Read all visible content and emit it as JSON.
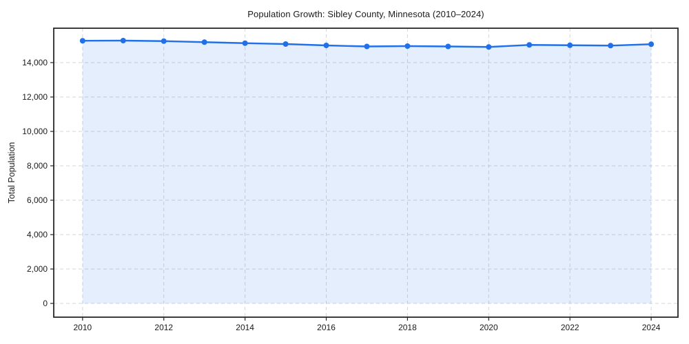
{
  "figure": {
    "background_color": "#ffffff"
  },
  "chart_data": {
    "type": "area",
    "title": "Population Growth: Sibley County, Minnesota (2010–2024)",
    "xlabel": "",
    "ylabel": "Total Population",
    "x": [
      2010,
      2011,
      2012,
      2013,
      2014,
      2015,
      2016,
      2017,
      2018,
      2019,
      2020,
      2021,
      2022,
      2023,
      2024
    ],
    "series": [
      {
        "name": "Total Population",
        "values": [
          15270,
          15280,
          15250,
          15190,
          15130,
          15080,
          15000,
          14940,
          14960,
          14940,
          14910,
          15030,
          15010,
          14990,
          15070
        ]
      }
    ],
    "x_ticks": {
      "values": [
        2010,
        2012,
        2014,
        2016,
        2018,
        2020,
        2022,
        2024
      ],
      "labels": [
        "2010",
        "2012",
        "2014",
        "2016",
        "2018",
        "2020",
        "2022",
        "2024"
      ]
    },
    "y_ticks": {
      "values": [
        0,
        2000,
        4000,
        6000,
        8000,
        10000,
        12000,
        14000
      ],
      "labels": [
        "0",
        "2,000",
        "4,000",
        "6,000",
        "8,000",
        "10,000",
        "12,000",
        "14,000"
      ]
    },
    "xlim": [
      2009.29,
      2024.66
    ],
    "ylim": [
      -800,
      16000
    ],
    "grid": true,
    "grid_style": "dashed",
    "legend": "none",
    "line_color": "#2170e8",
    "marker_color": "#2170e8",
    "fill_color": "#2170e8",
    "fill_opacity": 0.12,
    "grid_color": "#d2d6de",
    "spine_color": "#262626",
    "text_color": "#1a1a1a"
  }
}
